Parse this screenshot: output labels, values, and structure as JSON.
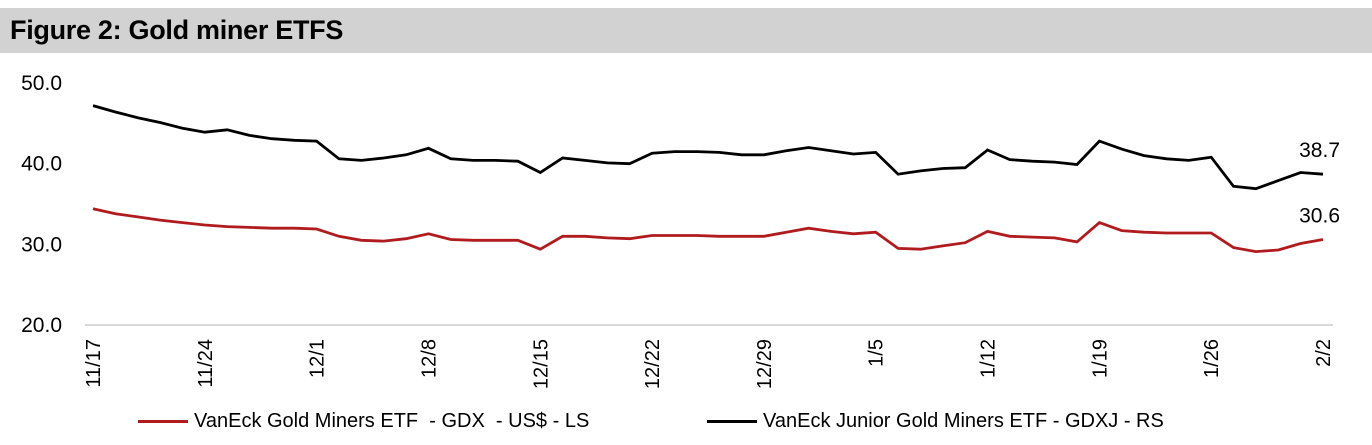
{
  "header": {
    "title": "Figure 2: Gold miner ETFS",
    "bar_color": "#d2d2d2"
  },
  "chart_data": {
    "type": "line",
    "title": "Figure 2: Gold miner ETFS",
    "x_tick_labels": [
      "11/17",
      "11/24",
      "12/1",
      "12/8",
      "12/15",
      "12/22",
      "12/29",
      "1/5",
      "1/12",
      "1/19",
      "1/26",
      "2/2"
    ],
    "y_tick_labels": [
      "50.0",
      "40.0",
      "30.0",
      "20.0"
    ],
    "ylim": [
      20,
      50
    ],
    "grid": "none (single light baseline at 20.0)",
    "baseline_color": "#d9d9d9",
    "legend_position": "bottom",
    "x_frequency": "daily (weekdays), weekly tick labels",
    "points_per_week": 5,
    "series": [
      {
        "name": "VanEck Gold Miners ETF  - GDX  - US$ - LS",
        "ticker": "GDX",
        "axis": "LS",
        "color": "#b01b1e",
        "end_label": "30.6",
        "values": [
          34.4,
          33.8,
          33.4,
          33.0,
          32.7,
          32.4,
          32.2,
          32.1,
          32.0,
          32.0,
          31.9,
          31.0,
          30.5,
          30.4,
          30.7,
          31.3,
          30.6,
          30.5,
          30.5,
          30.5,
          29.4,
          31.0,
          31.0,
          30.8,
          30.7,
          31.1,
          31.1,
          31.1,
          31.0,
          31.0,
          31.0,
          31.5,
          32.0,
          31.6,
          31.3,
          31.5,
          29.5,
          29.4,
          29.8,
          30.2,
          31.6,
          31.0,
          30.9,
          30.8,
          30.3,
          32.7,
          31.7,
          31.5,
          31.4,
          31.4,
          31.4,
          29.6,
          29.1,
          29.3,
          30.1,
          30.6
        ]
      },
      {
        "name": "VanEck Junior Gold Miners ETF - GDXJ - RS",
        "ticker": "GDXJ",
        "axis": "RS",
        "color": "#000000",
        "end_label": "38.7",
        "values": [
          47.2,
          46.4,
          45.7,
          45.1,
          44.4,
          43.9,
          44.2,
          43.5,
          43.1,
          42.9,
          42.8,
          40.6,
          40.4,
          40.7,
          41.1,
          41.9,
          40.6,
          40.4,
          40.4,
          40.3,
          38.9,
          40.7,
          40.4,
          40.1,
          40.0,
          41.3,
          41.5,
          41.5,
          41.4,
          41.1,
          41.1,
          41.6,
          42.0,
          41.6,
          41.2,
          41.4,
          38.7,
          39.1,
          39.4,
          39.5,
          41.7,
          40.5,
          40.3,
          40.2,
          39.9,
          42.8,
          41.8,
          41.0,
          40.6,
          40.4,
          40.8,
          37.2,
          36.9,
          37.9,
          38.9,
          38.7
        ]
      }
    ]
  }
}
